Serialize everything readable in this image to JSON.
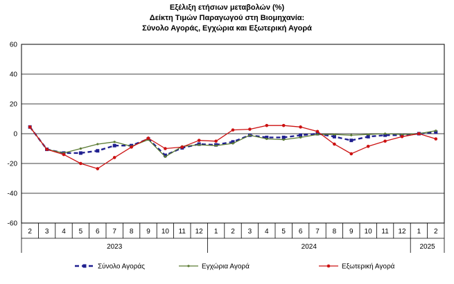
{
  "chart_data": {
    "type": "line",
    "title": "Εξέλιξη ετήσιων μεταβολών (%)",
    "subtitle": "Δείκτη Τιμών Παραγωγού στη Βιομηχανία:",
    "subtitle2": "Σύνολο Αγοράς, Εγχώρια και Εξωτερική Αγορά",
    "ylim": [
      -60,
      60
    ],
    "yticks": [
      "60",
      "40",
      "20",
      "0",
      "-20",
      "-40",
      "-60"
    ],
    "ytick_values": [
      60,
      40,
      20,
      0,
      -20,
      -40,
      -60
    ],
    "categories": [
      "2",
      "3",
      "4",
      "5",
      "6",
      "7",
      "8",
      "9",
      "10",
      "11",
      "12",
      "1",
      "2",
      "3",
      "4",
      "5",
      "6",
      "7",
      "8",
      "9",
      "10",
      "11",
      "12",
      "1",
      "2"
    ],
    "years": [
      {
        "label": "2023",
        "from": 0,
        "to": 10
      },
      {
        "label": "2024",
        "from": 11,
        "to": 22
      },
      {
        "label": "2025",
        "from": 23,
        "to": 24
      }
    ],
    "series": [
      {
        "name": "Σύνολο Αγοράς",
        "color": "#1f1f8f",
        "style": "dashed-square",
        "values": [
          4.5,
          -10.5,
          -13,
          -13,
          -11.5,
          -8,
          -8,
          -3.5,
          -14.5,
          -9.5,
          -7,
          -7.5,
          -5.5,
          -1,
          -2.5,
          -2.5,
          -1,
          0,
          -2,
          -4.5,
          -2,
          -1,
          -1,
          0,
          1
        ]
      },
      {
        "name": "Εγχώρια Αγορά",
        "color": "#5a7a32",
        "style": "solid-small",
        "values": [
          4.5,
          -10.5,
          -13,
          -10,
          -7,
          -5.5,
          -8.5,
          -4,
          -15.5,
          -8.5,
          -7.5,
          -8,
          -6.5,
          -1,
          -3.5,
          -4,
          -2.5,
          -0.5,
          -0.5,
          -1,
          -0.5,
          0,
          -0.5,
          0,
          2
        ]
      },
      {
        "name": "Εξωτερική Αγορά",
        "color": "#cc1111",
        "style": "solid-dot",
        "values": [
          4.5,
          -10.5,
          -14,
          -20,
          -23.5,
          -16,
          -9,
          -3,
          -10,
          -9,
          -4.5,
          -5,
          2.5,
          3,
          5.5,
          5.5,
          4.5,
          1.5,
          -7,
          -13.5,
          -8.5,
          -5,
          -2,
          0,
          -3.5
        ]
      }
    ],
    "grid": true,
    "legend_position": "bottom"
  }
}
